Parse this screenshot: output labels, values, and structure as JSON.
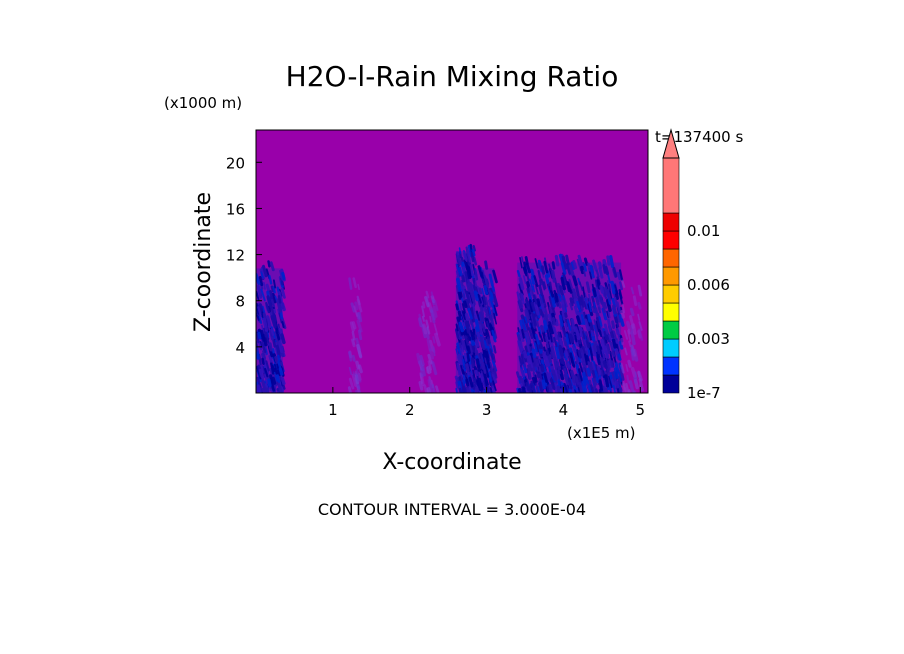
{
  "chart_data": {
    "type": "heatmap",
    "title": "H2O-l-Rain Mixing Ratio",
    "xlabel": "X-coordinate",
    "ylabel": "Z-coordinate",
    "x_unit": "(x1E5 m)",
    "y_unit": "(x1000 m)",
    "time_label": "t=137400 s",
    "footer": "CONTOUR INTERVAL = 3.000E-04",
    "xlim": [
      0,
      5.1
    ],
    "ylim": [
      0,
      22.8
    ],
    "x_ticks": [
      "1",
      "2",
      "3",
      "4",
      "5"
    ],
    "y_ticks": [
      "4",
      "8",
      "12",
      "16",
      "20"
    ],
    "background_color": "#9900aa",
    "colorbar": {
      "colors": [
        "#000099",
        "#0033ff",
        "#00ccff",
        "#00cc44",
        "#ffff00",
        "#ffcc00",
        "#ff9900",
        "#ff6600",
        "#ff0000",
        "#ee0000",
        "#ff7777"
      ],
      "labels": [
        "1e-7",
        "0.003",
        "0.006",
        "0.01"
      ],
      "label_positions": [
        0,
        3,
        6,
        9
      ]
    },
    "rain_regions": [
      {
        "x0": 0.0,
        "x1": 0.35,
        "ztop": 11.5,
        "intensity": 0.8
      },
      {
        "x0": 1.2,
        "x1": 1.35,
        "ztop": 11.0,
        "intensity": 0.25
      },
      {
        "x0": 2.1,
        "x1": 2.35,
        "ztop": 10.0,
        "intensity": 0.25
      },
      {
        "x0": 2.6,
        "x1": 2.85,
        "ztop": 13.0,
        "intensity": 0.95
      },
      {
        "x0": 2.85,
        "x1": 3.1,
        "ztop": 11.5,
        "intensity": 0.9
      },
      {
        "x0": 3.4,
        "x1": 4.75,
        "ztop": 12.0,
        "intensity": 0.7
      },
      {
        "x0": 4.75,
        "x1": 5.0,
        "ztop": 10.0,
        "intensity": 0.2
      }
    ]
  }
}
